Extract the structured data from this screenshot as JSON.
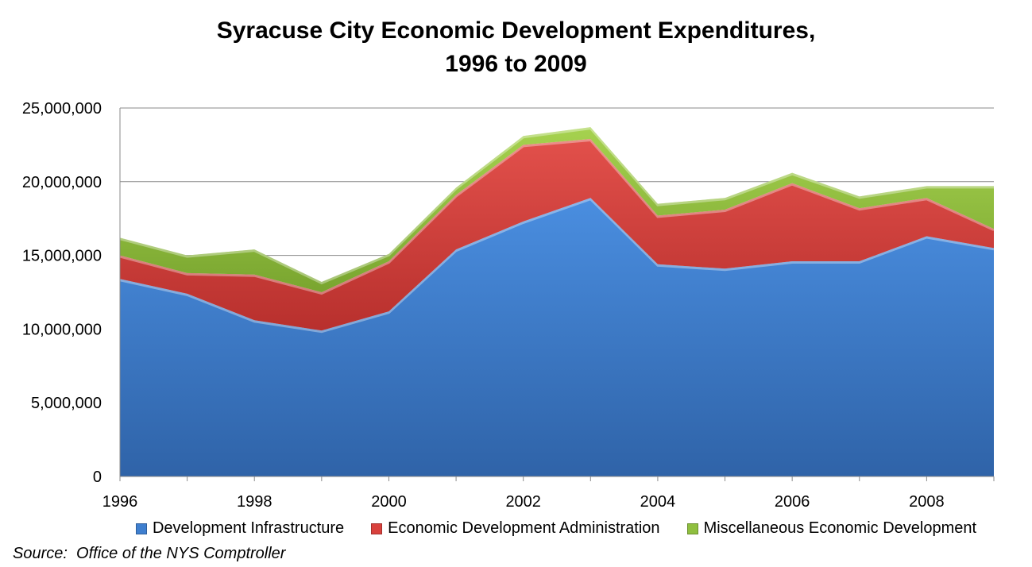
{
  "chart_data": {
    "type": "area",
    "stacked": true,
    "title_lines": [
      "Syracuse City Economic Development Expenditures,",
      "1996 to 2009"
    ],
    "x": [
      1996,
      1997,
      1998,
      1999,
      2000,
      2001,
      2002,
      2003,
      2004,
      2005,
      2006,
      2007,
      2008,
      2009
    ],
    "x_tick_labels": [
      "1996",
      "1998",
      "2000",
      "2002",
      "2004",
      "2006",
      "2008"
    ],
    "x_tick_values": [
      1996,
      1998,
      2000,
      2002,
      2004,
      2006,
      2008
    ],
    "ylim": [
      0,
      25000000
    ],
    "y_tick_values": [
      0,
      5000000,
      10000000,
      15000000,
      20000000,
      25000000
    ],
    "y_tick_labels": [
      "0",
      "5,000,000",
      "10,000,000",
      "15,000,000",
      "20,000,000",
      "25,000,000"
    ],
    "grid": "horizontal",
    "legend_position": "bottom",
    "series": [
      {
        "name": "Development Infrastructure",
        "color": "#3f7fcf",
        "values": [
          13400000,
          12400000,
          10600000,
          9900000,
          11200000,
          15400000,
          17300000,
          18900000,
          14400000,
          14100000,
          14600000,
          14600000,
          16300000,
          15500000
        ]
      },
      {
        "name": "Economic Development Administration",
        "color": "#d9413d",
        "values": [
          1600000,
          1400000,
          3100000,
          2600000,
          3400000,
          3700000,
          5200000,
          4000000,
          3300000,
          4000000,
          5300000,
          3600000,
          2600000,
          1300000
        ]
      },
      {
        "name": "Miscellaneous Economic Development",
        "color": "#8fbf3f",
        "values": [
          1200000,
          1200000,
          1700000,
          700000,
          500000,
          500000,
          600000,
          800000,
          800000,
          800000,
          700000,
          800000,
          800000,
          2900000
        ]
      }
    ]
  },
  "source_note": "Source:  Office of the NYS Comptroller"
}
